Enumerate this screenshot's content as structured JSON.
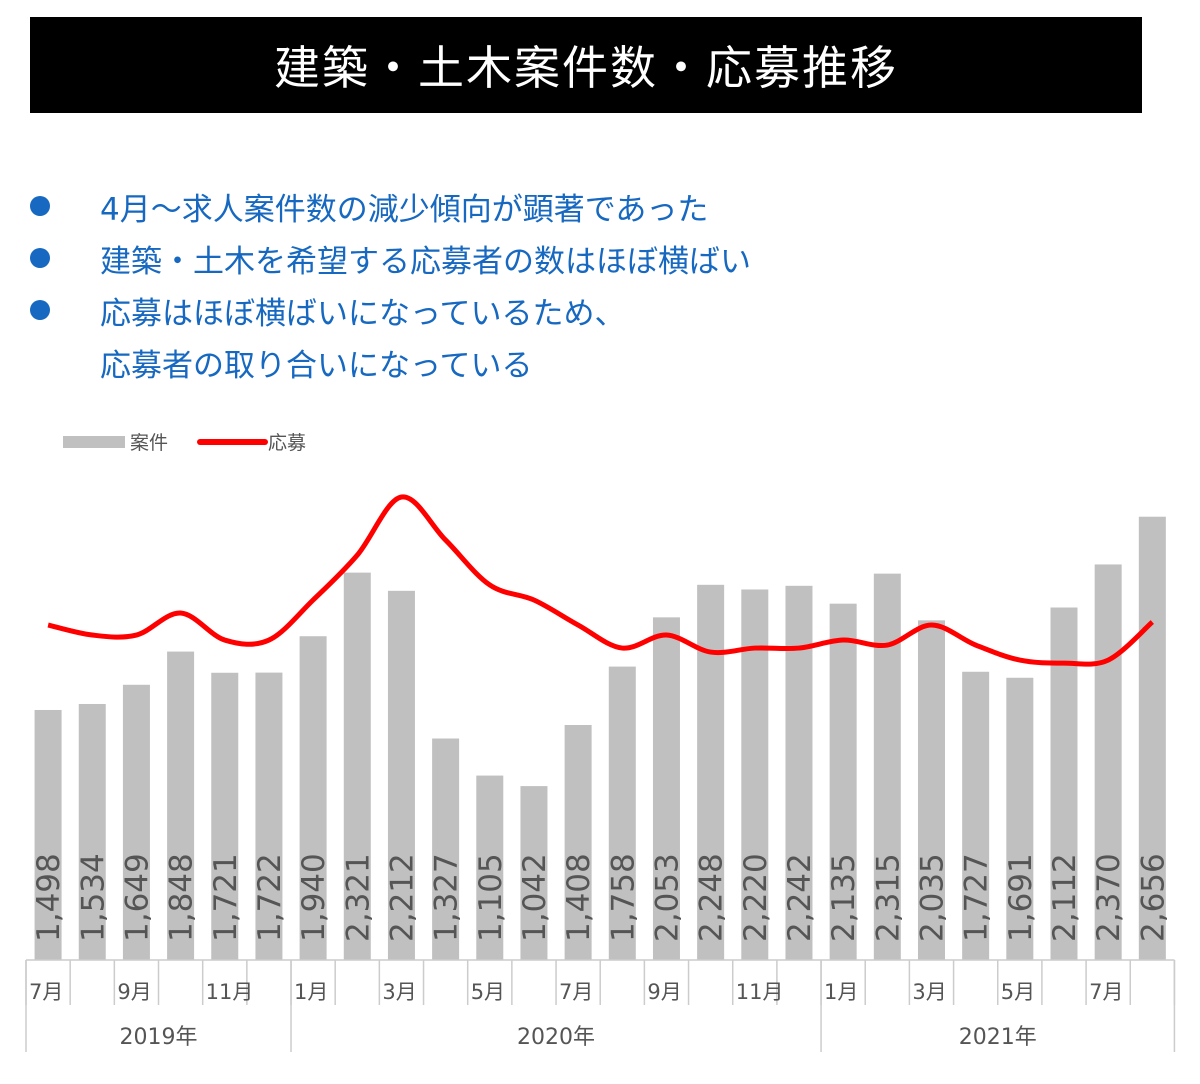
{
  "title": "建築・土木案件数・応募推移",
  "bullets": [
    "4月～求人案件数の減少傾向が顕著であった",
    "建築・土木を希望する応募者の数はほぼ横ばい",
    "応募はほぼ横ばいになっているため、",
    "応募者の取り合いになっている"
  ],
  "colors": {
    "bar": "#c0c0c0",
    "line": "#ff0000",
    "bullet": "#1668c0"
  },
  "chart_data": {
    "type": "bar",
    "categories": [
      "2019-07",
      "2019-08",
      "2019-09",
      "2019-10",
      "2019-11",
      "2019-12",
      "2020-01",
      "2020-02",
      "2020-03",
      "2020-04",
      "2020-05",
      "2020-06",
      "2020-07",
      "2020-08",
      "2020-09",
      "2020-10",
      "2020-11",
      "2020-12",
      "2021-01",
      "2021-02",
      "2021-03",
      "2021-04",
      "2021-05",
      "2021-06",
      "2021-07",
      "2021-08"
    ],
    "month_labels": [
      "7月",
      "",
      "9月",
      "",
      "11月",
      "",
      "1月",
      "",
      "3月",
      "",
      "5月",
      "",
      "7月",
      "",
      "9月",
      "",
      "11月",
      "",
      "1月",
      "",
      "3月",
      "",
      "5月",
      "",
      "7月",
      ""
    ],
    "years": [
      {
        "label": "2019年",
        "span": 6
      },
      {
        "label": "2020年",
        "span": 12
      },
      {
        "label": "2021年",
        "span": 8
      }
    ],
    "legend": [
      "案件",
      "応募"
    ],
    "legend_position": "top-left",
    "series": [
      {
        "name": "案件",
        "type": "bar",
        "values": [
          1498,
          1534,
          1649,
          1848,
          1721,
          1722,
          1940,
          2321,
          2212,
          1327,
          1105,
          1042,
          1408,
          1758,
          2053,
          2248,
          2220,
          2242,
          2135,
          2315,
          2035,
          1727,
          1691,
          2112,
          2370,
          2656
        ],
        "value_labels": [
          "1,498",
          "1,534",
          "1,649",
          "1,848",
          "1,721",
          "1,722",
          "1,940",
          "2,321",
          "2,212",
          "1,327",
          "1,105",
          "1,042",
          "1,408",
          "1,758",
          "2,053",
          "2,248",
          "2,220",
          "2,242",
          "2,135",
          "2,315",
          "2,035",
          "1,727",
          "1,691",
          "2,112",
          "2,370",
          "2,656"
        ]
      },
      {
        "name": "応募",
        "type": "line",
        "note": "unlabeled, estimated on same scale",
        "values": [
          2007,
          1947,
          1947,
          2079,
          1917,
          1917,
          2157,
          2426,
          2774,
          2516,
          2247,
          2157,
          2007,
          1869,
          1947,
          1845,
          1869,
          1869,
          1917,
          1887,
          2007,
          1887,
          1797,
          1779,
          1797,
          2025
        ]
      }
    ],
    "ylim": [
      0,
      3360
    ],
    "grid": false
  }
}
